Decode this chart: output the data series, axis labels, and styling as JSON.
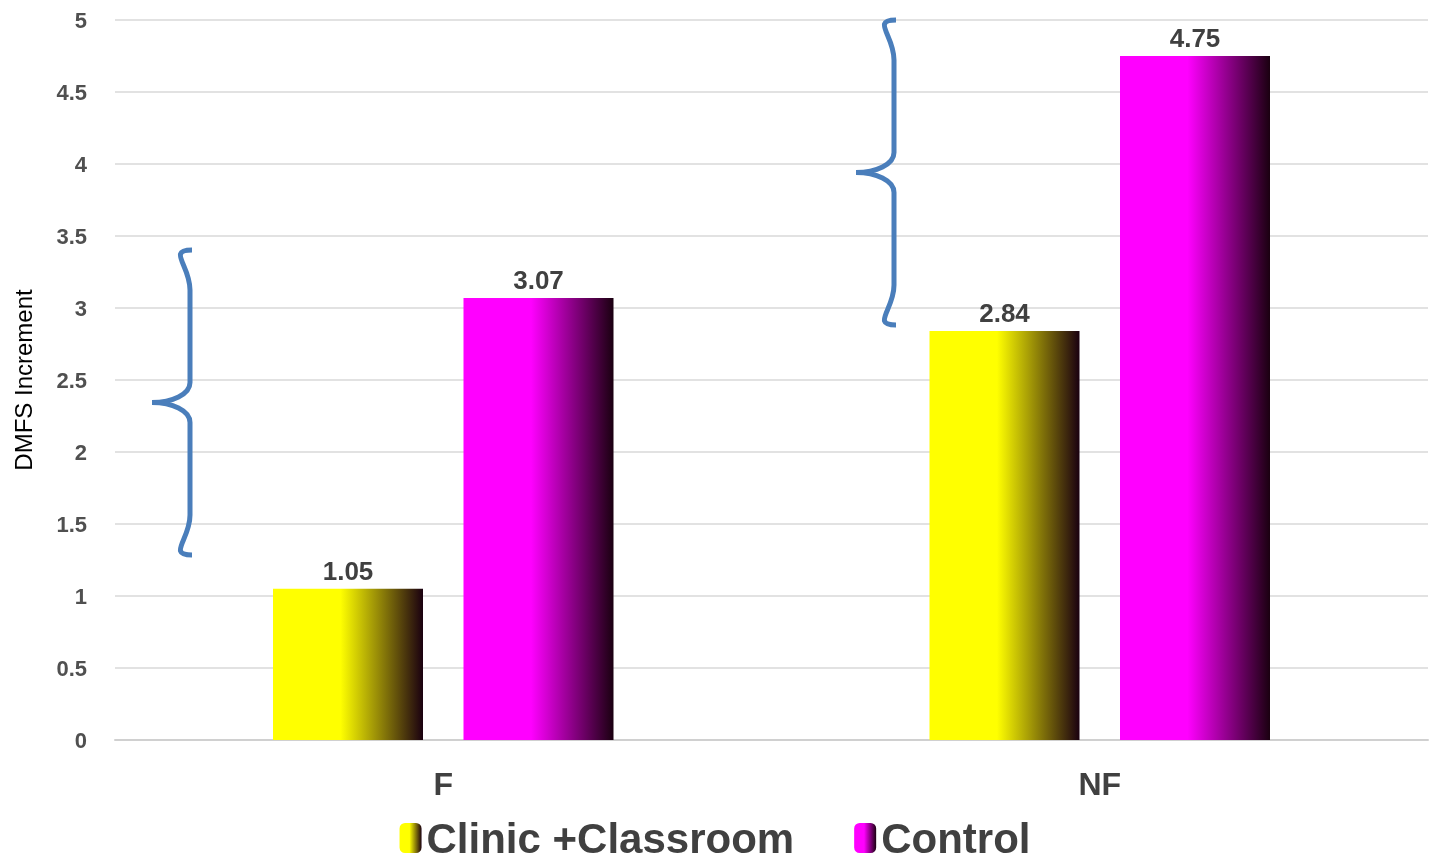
{
  "chart_data": {
    "type": "bar",
    "ylabel": "DMFS Increment",
    "categories": [
      "F",
      "NF"
    ],
    "series": [
      {
        "name": "Clinic +Classroom",
        "color": "#ffff00",
        "values": [
          1.05,
          2.84
        ]
      },
      {
        "name": "Control",
        "color": "#ff00ff",
        "values": [
          3.07,
          4.75
        ]
      }
    ],
    "ylim": [
      0,
      5
    ],
    "yticks": [
      0,
      0.5,
      1,
      1.5,
      2,
      2.5,
      3,
      3.5,
      4,
      4.5,
      5
    ],
    "grid": "y",
    "legend": "bottom",
    "data_labels": true
  }
}
